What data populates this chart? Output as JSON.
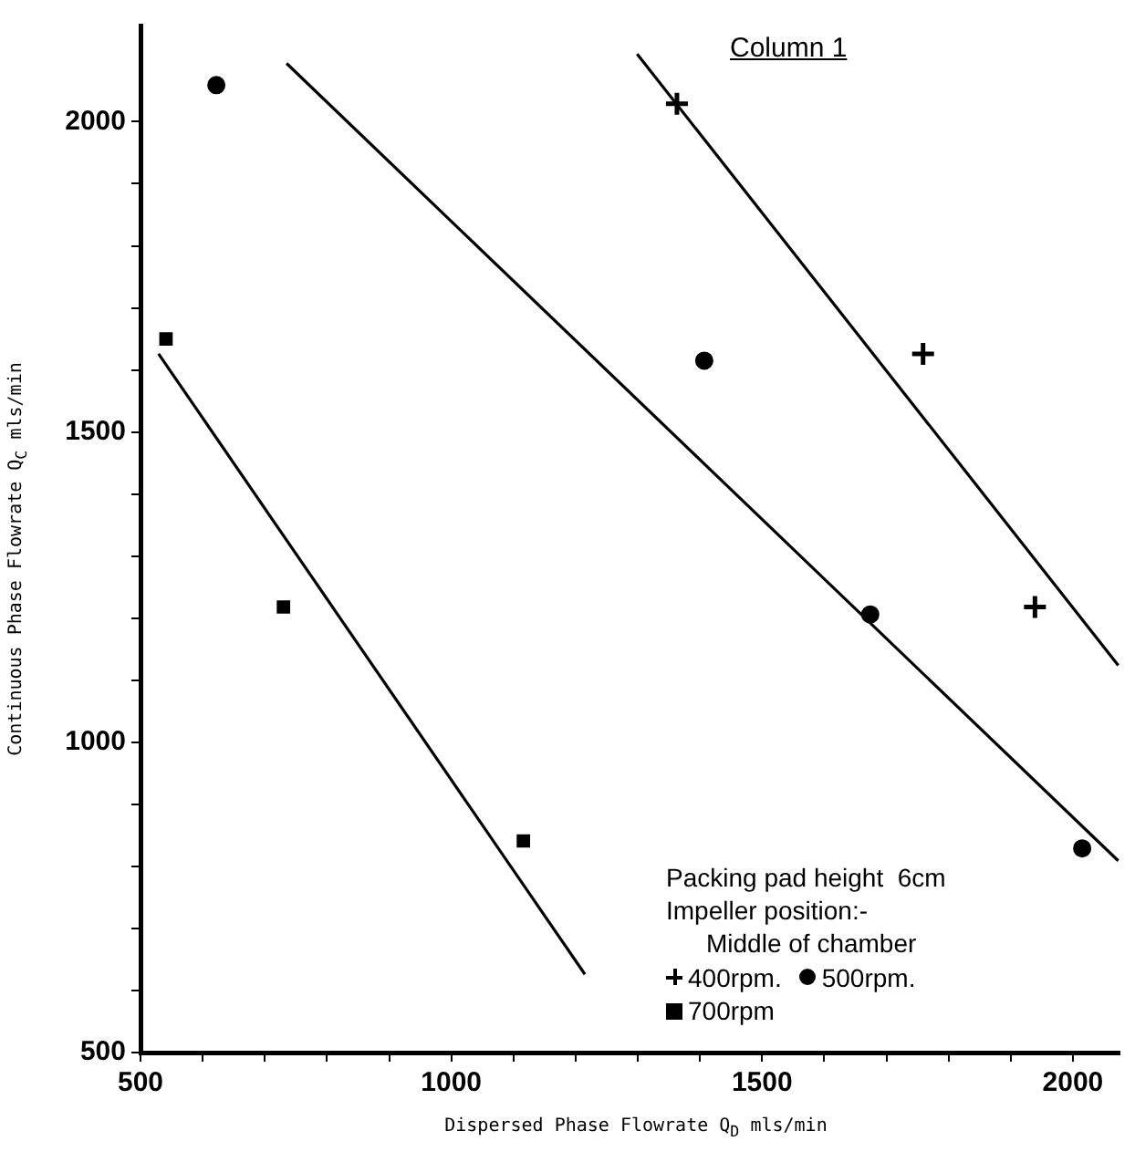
{
  "chart_data": {
    "type": "scatter",
    "title": "Column 1",
    "xlabel": "Dispersed Phase Flowrate Q$_{D}$ mls/min",
    "ylabel": "Continuous Phase Flowrate Q$_{C}$ mls/min",
    "xlim": [
      500,
      2075
    ],
    "ylim": [
      500,
      2155
    ],
    "xticks": [
      500,
      {
        "value": 600,
        "label": null
      },
      {
        "value": 700,
        "label": null
      },
      {
        "value": 800,
        "label": null
      },
      {
        "value": 900,
        "label": null
      },
      1000,
      {
        "value": 1100,
        "label": null
      },
      {
        "value": 1200,
        "label": null
      },
      {
        "value": 1300,
        "label": null
      },
      {
        "value": 1400,
        "label": null
      },
      1500,
      {
        "value": 1600,
        "label": null
      },
      {
        "value": 1700,
        "label": null
      },
      {
        "value": 1800,
        "label": null
      },
      {
        "value": 1900,
        "label": null
      },
      2000
    ],
    "yticks": [
      500,
      {
        "value": 600,
        "label": null
      },
      {
        "value": 700,
        "label": null
      },
      {
        "value": 800,
        "label": null
      },
      {
        "value": 900,
        "label": null
      },
      1000,
      {
        "value": 1100,
        "label": null
      },
      {
        "value": 1200,
        "label": null
      },
      {
        "value": 1300,
        "label": null
      },
      {
        "value": 1400,
        "label": null
      },
      1500,
      {
        "value": 1600,
        "label": null
      },
      {
        "value": 1700,
        "label": null
      },
      {
        "value": 1800,
        "label": null
      },
      {
        "value": 1900,
        "label": null
      },
      2000
    ],
    "grid": false,
    "legend": "bottom right",
    "annotations": [
      "Packing pad height  6cm",
      "Impeller position:-",
      "Middle of chamber"
    ],
    "series": [
      {
        "name": "400rpm.",
        "marker": "cross",
        "color": "#000000",
        "x": [
          1363,
          1759,
          1939
        ],
        "values": [
          2029,
          1626,
          1218
        ]
      },
      {
        "name": "500rpm.",
        "marker": "circle",
        "color": "#000000",
        "x": [
          622,
          1407,
          1674,
          2015
        ],
        "values": [
          2059,
          1615,
          1206,
          829
        ]
      },
      {
        "name": "700rpm",
        "marker": "square",
        "color": "#000000",
        "x": [
          541,
          730,
          1116
        ],
        "values": [
          1650,
          1218,
          841
        ]
      },
      {
        "type": "line",
        "marker": "none",
        "line_style": "solid",
        "color": "#000000",
        "x": [
          1299,
          2073
        ],
        "values": [
          2109,
          1124
        ]
      },
      {
        "type": "line",
        "marker": "none",
        "line_style": "solid",
        "color": "#000000",
        "x": [
          735,
          2073
        ],
        "values": [
          2094,
          809
        ]
      },
      {
        "type": "line",
        "marker": "none",
        "line_style": "solid",
        "color": "#000000",
        "x": [
          529,
          1215
        ],
        "values": [
          1626,
          626
        ]
      }
    ]
  }
}
